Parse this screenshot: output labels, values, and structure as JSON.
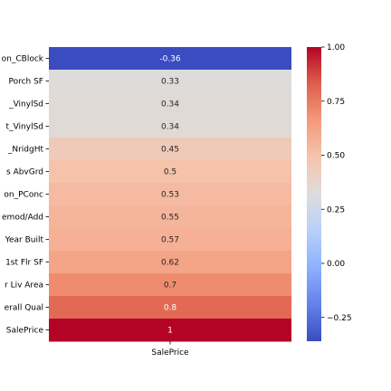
{
  "chart_data": {
    "type": "heatmap",
    "title": "",
    "xlabel": "",
    "ylabel": "",
    "columns": [
      "SalePrice"
    ],
    "rows": [
      "on_CBlock",
      "Porch SF",
      "_VinylSd",
      "t_VinylSd",
      "_NridgHt",
      "s AbvGrd",
      "on_PConc",
      "emod/Add",
      "Year Built",
      "1st Flr SF",
      "r Liv Area",
      "erall Qual",
      "SalePrice"
    ],
    "values": [
      -0.36,
      0.33,
      0.34,
      0.34,
      0.45,
      0.5,
      0.53,
      0.55,
      0.57,
      0.62,
      0.7,
      0.8,
      1
    ],
    "value_labels": [
      "-0.36",
      "0.33",
      "0.34",
      "0.34",
      "0.45",
      "0.5",
      "0.53",
      "0.55",
      "0.57",
      "0.62",
      "0.7",
      "0.8",
      "1"
    ],
    "colormap": "coolwarm",
    "colorbar": {
      "range": [
        -0.36,
        1.0
      ],
      "ticks": [
        1.0,
        0.75,
        0.5,
        0.25,
        0.0,
        -0.25
      ],
      "tick_labels": [
        "1.00",
        "0.75",
        "0.50",
        "0.25",
        "0.00",
        "−0.25"
      ]
    }
  }
}
